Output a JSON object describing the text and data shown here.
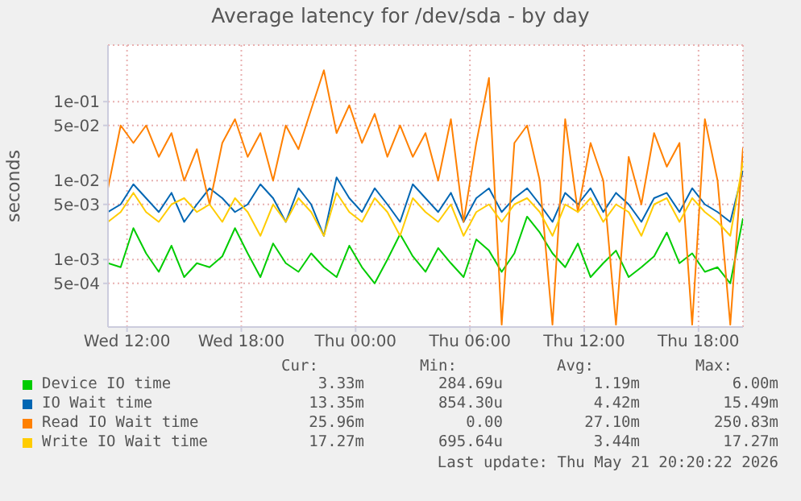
{
  "chart_data": {
    "type": "line",
    "title": "Average latency for /dev/sda - by day",
    "ylabel": "seconds",
    "log": "y",
    "grid": true,
    "legend": "bottom",
    "marker": "none",
    "line_style": "solid",
    "xlim": [
      "2026-05-20T11:00",
      "2026-05-21T20:20"
    ],
    "xticks": [
      {
        "value": "2026-05-20T12:00",
        "label": "Wed 12:00"
      },
      {
        "value": "2026-05-20T18:00",
        "label": "Wed 18:00"
      },
      {
        "value": "2026-05-21T00:00",
        "label": "Thu 00:00"
      },
      {
        "value": "2026-05-21T06:00",
        "label": "Thu 06:00"
      },
      {
        "value": "2026-05-21T12:00",
        "label": "Thu 12:00"
      },
      {
        "value": "2026-05-21T18:00",
        "label": "Thu 18:00"
      }
    ],
    "ylim": [
      0.00014,
      0.52
    ],
    "yticks": [
      {
        "value": 0.0005,
        "label": "5e-04"
      },
      {
        "value": 0.001,
        "label": "1e-03"
      },
      {
        "value": 0.005,
        "label": "5e-03"
      },
      {
        "value": 0.01,
        "label": "1e-02"
      },
      {
        "value": 0.05,
        "label": "5e-02"
      },
      {
        "value": 0.1,
        "label": "1e-01"
      }
    ],
    "x": [
      "2026-05-20T11:00",
      "2026-05-20T11:40",
      "2026-05-20T12:20",
      "2026-05-20T13:00",
      "2026-05-20T13:40",
      "2026-05-20T14:20",
      "2026-05-20T15:00",
      "2026-05-20T15:40",
      "2026-05-20T16:20",
      "2026-05-20T17:00",
      "2026-05-20T17:40",
      "2026-05-20T18:20",
      "2026-05-20T19:00",
      "2026-05-20T19:40",
      "2026-05-20T20:20",
      "2026-05-20T21:00",
      "2026-05-20T21:40",
      "2026-05-20T22:20",
      "2026-05-20T23:00",
      "2026-05-20T23:40",
      "2026-05-21T00:20",
      "2026-05-21T01:00",
      "2026-05-21T01:40",
      "2026-05-21T02:20",
      "2026-05-21T03:00",
      "2026-05-21T03:40",
      "2026-05-21T04:20",
      "2026-05-21T05:00",
      "2026-05-21T05:40",
      "2026-05-21T06:20",
      "2026-05-21T07:00",
      "2026-05-21T07:40",
      "2026-05-21T08:20",
      "2026-05-21T09:00",
      "2026-05-21T09:40",
      "2026-05-21T10:20",
      "2026-05-21T11:00",
      "2026-05-21T11:40",
      "2026-05-21T12:20",
      "2026-05-21T13:00",
      "2026-05-21T13:40",
      "2026-05-21T14:20",
      "2026-05-21T15:00",
      "2026-05-21T15:40",
      "2026-05-21T16:20",
      "2026-05-21T17:00",
      "2026-05-21T17:40",
      "2026-05-21T18:20",
      "2026-05-21T19:00",
      "2026-05-21T19:40",
      "2026-05-21T20:20"
    ],
    "series": [
      {
        "name": "Device IO time",
        "color": "#00cc00",
        "values": [
          0.0009,
          0.0008,
          0.0025,
          0.0012,
          0.0007,
          0.0015,
          0.0006,
          0.0009,
          0.0008,
          0.0011,
          0.0025,
          0.0012,
          0.0006,
          0.0016,
          0.0009,
          0.0007,
          0.0012,
          0.0008,
          0.0006,
          0.0015,
          0.0008,
          0.0005,
          0.001,
          0.0021,
          0.0011,
          0.0007,
          0.0014,
          0.0009,
          0.0006,
          0.0018,
          0.0013,
          0.0007,
          0.0012,
          0.0035,
          0.0022,
          0.0012,
          0.0008,
          0.0016,
          0.0006,
          0.0009,
          0.0013,
          0.0006,
          0.0008,
          0.0011,
          0.0022,
          0.0009,
          0.0012,
          0.0007,
          0.0008,
          0.0005,
          0.00333
        ]
      },
      {
        "name": "IO Wait time",
        "color": "#0066b3",
        "values": [
          0.004,
          0.005,
          0.009,
          0.006,
          0.004,
          0.007,
          0.003,
          0.005,
          0.008,
          0.006,
          0.004,
          0.005,
          0.009,
          0.006,
          0.003,
          0.008,
          0.005,
          0.002,
          0.011,
          0.006,
          0.004,
          0.008,
          0.005,
          0.003,
          0.009,
          0.006,
          0.004,
          0.007,
          0.003,
          0.006,
          0.008,
          0.004,
          0.006,
          0.008,
          0.005,
          0.003,
          0.007,
          0.005,
          0.008,
          0.004,
          0.007,
          0.005,
          0.003,
          0.006,
          0.007,
          0.004,
          0.008,
          0.005,
          0.004,
          0.003,
          0.01335
        ]
      },
      {
        "name": "Read IO Wait time",
        "color": "#ff8000",
        "values": [
          0.008,
          0.05,
          0.03,
          0.05,
          0.02,
          0.04,
          0.01,
          0.025,
          0.005,
          0.03,
          0.06,
          0.02,
          0.04,
          0.01,
          0.05,
          0.025,
          0.08,
          0.25,
          0.04,
          0.09,
          0.03,
          0.07,
          0.02,
          0.05,
          0.02,
          0.04,
          0.01,
          0.06,
          0.003,
          0.03,
          0.2,
          0.00015,
          0.03,
          0.05,
          0.01,
          0.00015,
          0.06,
          0.004,
          0.03,
          0.01,
          0.00015,
          0.02,
          0.005,
          0.04,
          0.015,
          0.03,
          0.00015,
          0.06,
          0.01,
          0.00015,
          0.02596
        ]
      },
      {
        "name": "Write IO Wait time",
        "color": "#ffcc00",
        "values": [
          0.003,
          0.004,
          0.007,
          0.004,
          0.003,
          0.005,
          0.006,
          0.004,
          0.005,
          0.003,
          0.006,
          0.004,
          0.002,
          0.005,
          0.003,
          0.006,
          0.004,
          0.002,
          0.007,
          0.004,
          0.003,
          0.006,
          0.004,
          0.002,
          0.006,
          0.004,
          0.003,
          0.005,
          0.002,
          0.004,
          0.005,
          0.003,
          0.005,
          0.006,
          0.004,
          0.002,
          0.005,
          0.004,
          0.006,
          0.003,
          0.005,
          0.004,
          0.002,
          0.005,
          0.006,
          0.003,
          0.006,
          0.004,
          0.003,
          0.002,
          0.01727
        ]
      }
    ],
    "annotations": [
      "Cur:",
      "Min:",
      "Avg:",
      "Max:",
      "3.33m",
      "284.69u",
      "1.19m",
      "6.00m",
      "13.35m",
      "854.30u",
      "4.42m",
      "15.49m",
      "25.96m",
      "0.00",
      "27.10m",
      "250.83m",
      "17.27m",
      "695.64u",
      "3.44m",
      "17.27m",
      "Last update: Thu May 21 20:20:22 2026"
    ]
  }
}
